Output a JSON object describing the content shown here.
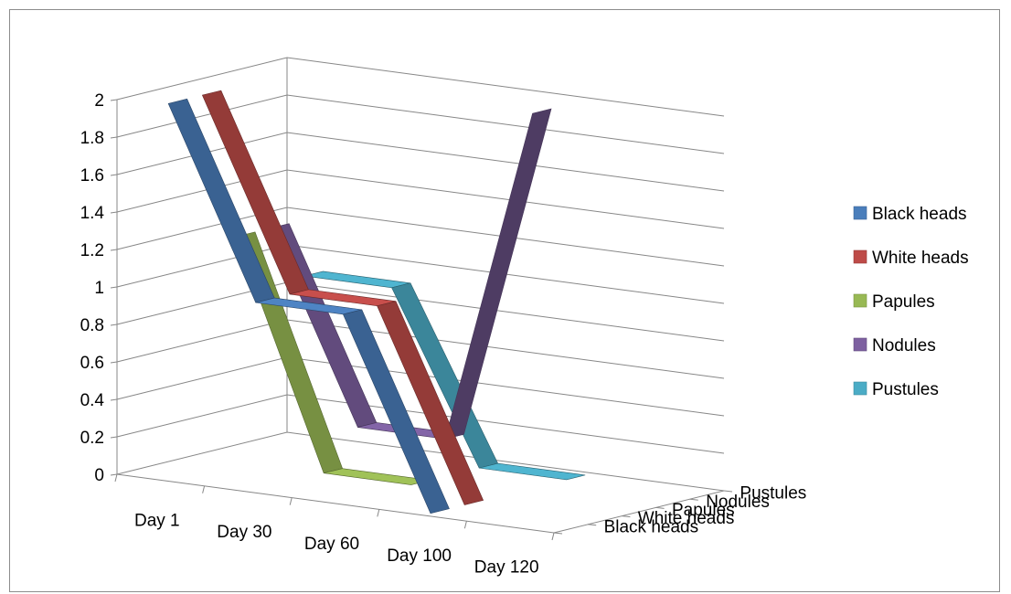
{
  "chart_data": {
    "type": "line",
    "subtype": "3d-line",
    "title": "",
    "categories": [
      "Day 1",
      "Day 30",
      "Day 60",
      "Day 100",
      "Day 120"
    ],
    "ylim": [
      0,
      2
    ],
    "y_ticks": [
      "0",
      "0.2",
      "0.4",
      "0.6",
      "0.8",
      "1",
      "1.2",
      "1.4",
      "1.6",
      "1.8",
      "2"
    ],
    "depth_labels": [
      "Black heads",
      "White heads",
      "Papules",
      "Nodules",
      "Pustules"
    ],
    "grid": true,
    "legend_position": "right",
    "series": [
      {
        "name": "Black heads",
        "color": "#4a7ebb",
        "values": [
          2,
          1,
          1,
          0,
          null
        ]
      },
      {
        "name": "White heads",
        "color": "#be4b48",
        "values": [
          2,
          1,
          1,
          0,
          null
        ]
      },
      {
        "name": "Papules",
        "color": "#98b954",
        "values": [
          1.2,
          0,
          0,
          null,
          null
        ]
      },
      {
        "name": "Nodules",
        "color": "#7d60a0",
        "values": [
          1.2,
          0.2,
          0.2,
          2,
          null
        ]
      },
      {
        "name": "Pustules",
        "color": "#4bacc6",
        "values": [
          0.9,
          0.9,
          0,
          0,
          null
        ]
      }
    ]
  }
}
